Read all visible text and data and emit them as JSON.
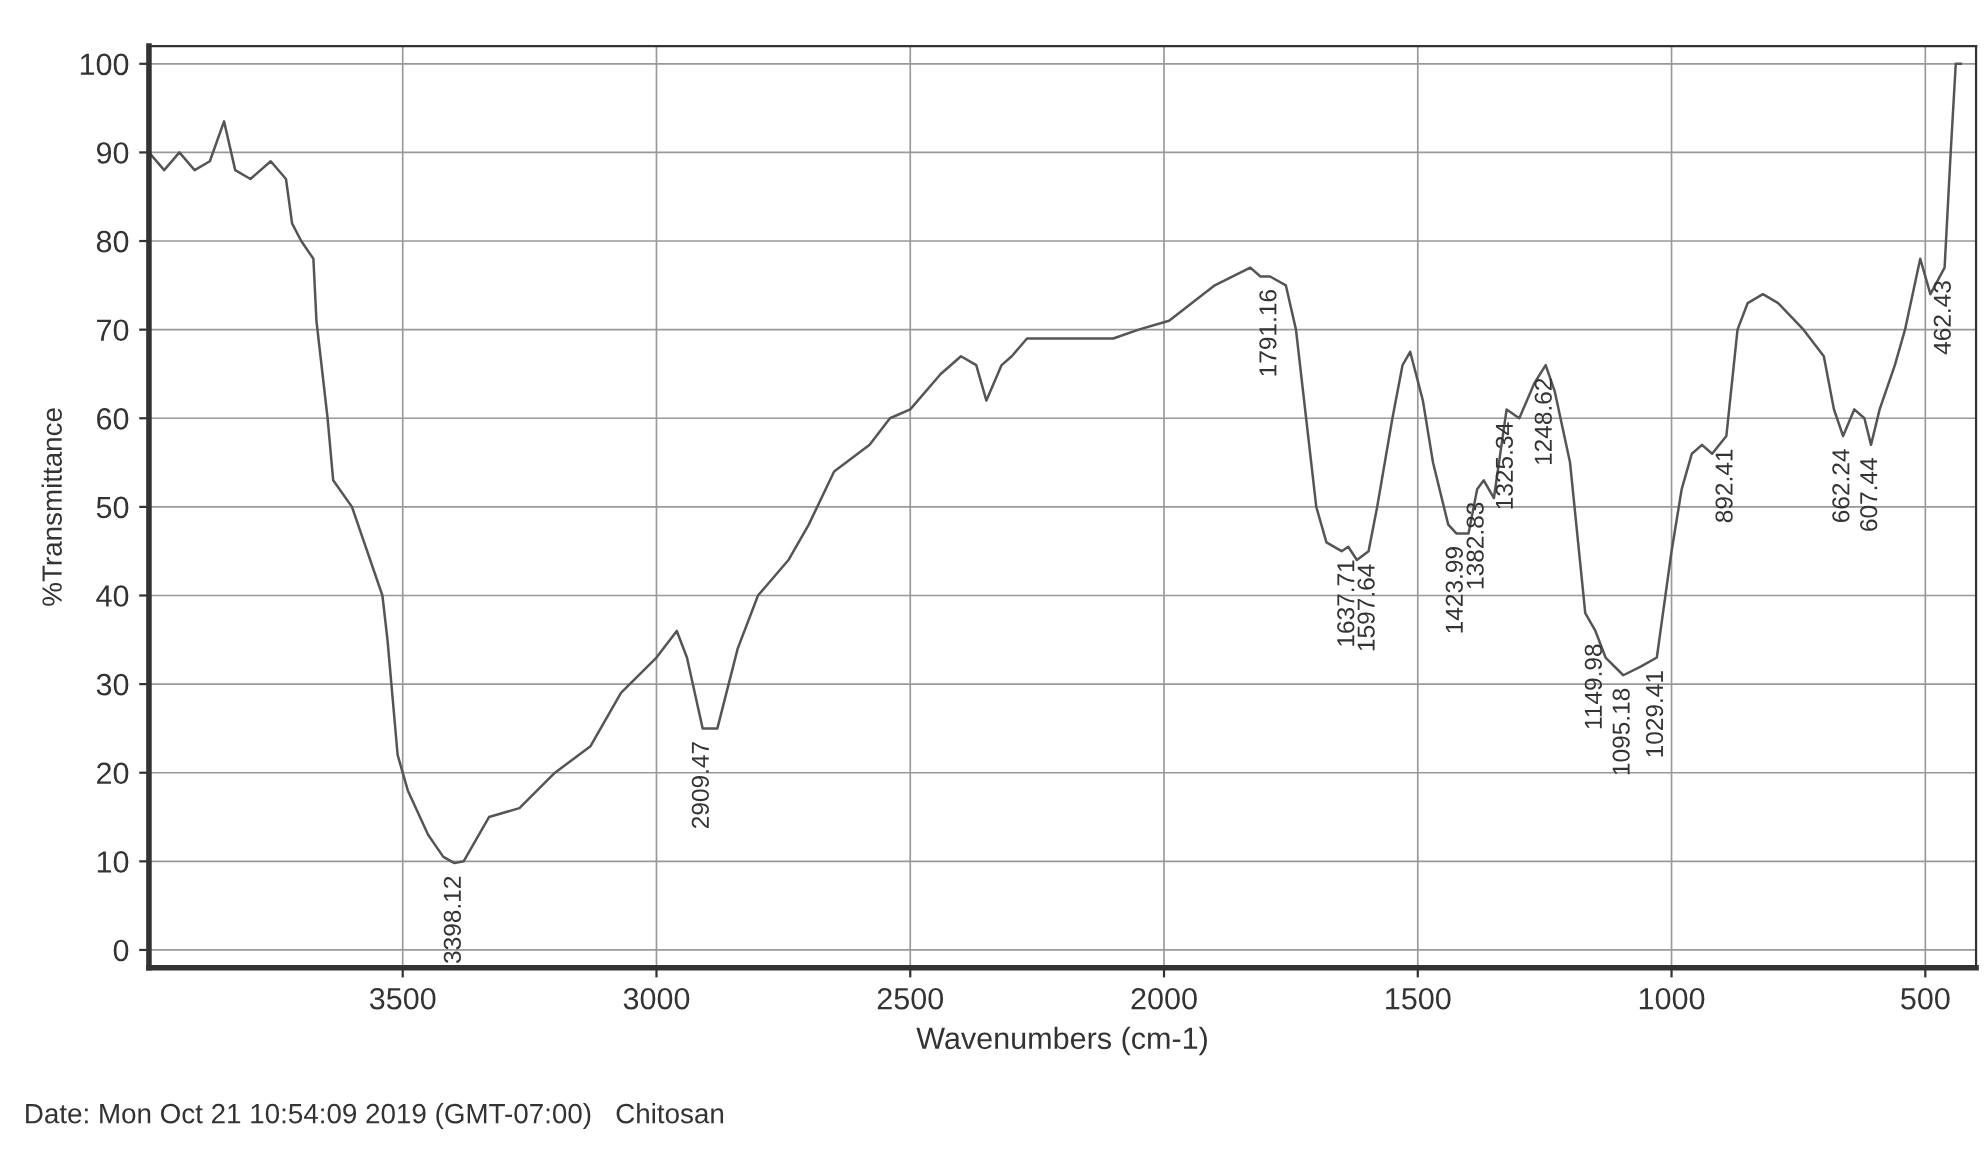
{
  "chart_data": {
    "type": "line",
    "xlabel": "Wavenumbers (cm-1)",
    "ylabel": "%Transmittance",
    "xlim": [
      4000,
      400
    ],
    "ylim": [
      -2,
      102
    ],
    "xticks": [
      3500,
      3000,
      2500,
      2000,
      1500,
      1000,
      500
    ],
    "yticks": [
      0,
      10,
      20,
      30,
      40,
      50,
      60,
      70,
      80,
      90,
      100
    ],
    "grid": true,
    "legend": false,
    "marker": "none",
    "line_style": "solid",
    "series": [
      {
        "color": "#555555",
        "x": [
          4000,
          3970,
          3940,
          3910,
          3880,
          3852,
          3830,
          3800,
          3780,
          3760,
          3730,
          3718,
          3700,
          3676,
          3670,
          3648,
          3637,
          3600,
          3540,
          3530,
          3510,
          3490,
          3450,
          3420,
          3398,
          3380,
          3330,
          3270,
          3200,
          3130,
          3070,
          3000,
          2960,
          2940,
          2909,
          2880,
          2840,
          2800,
          2740,
          2700,
          2650,
          2580,
          2540,
          2500,
          2440,
          2400,
          2370,
          2350,
          2320,
          2300,
          2270,
          2200,
          2100,
          2050,
          1990,
          1900,
          1830,
          1810,
          1791,
          1760,
          1740,
          1700,
          1680,
          1650,
          1637,
          1620,
          1597,
          1580,
          1550,
          1530,
          1515,
          1490,
          1470,
          1440,
          1424,
          1400,
          1383,
          1370,
          1350,
          1325,
          1300,
          1270,
          1248,
          1230,
          1200,
          1170,
          1150,
          1130,
          1095,
          1060,
          1029,
          1000,
          980,
          960,
          940,
          920,
          892,
          870,
          850,
          820,
          790,
          740,
          700,
          680,
          662,
          640,
          620,
          607,
          590,
          560,
          540,
          510,
          490,
          462,
          450,
          440,
          430
        ],
        "values": [
          90,
          88,
          90,
          88,
          89,
          93.5,
          88,
          87,
          88,
          89,
          87,
          82,
          80,
          78,
          71,
          60,
          53,
          50,
          40,
          35,
          22,
          18,
          13,
          10.5,
          9.8,
          10,
          15,
          16,
          20,
          23,
          29,
          33,
          36,
          33,
          25,
          25,
          34,
          40,
          44,
          48,
          54,
          57,
          60,
          61,
          65,
          67,
          66,
          62,
          66,
          67,
          69,
          69,
          69,
          70,
          71,
          75,
          77,
          76,
          76,
          75,
          70,
          50,
          46,
          45,
          45.5,
          44,
          45,
          50,
          60,
          66,
          67.5,
          62,
          55,
          48,
          47,
          47,
          52,
          53,
          51,
          61,
          60,
          64,
          66,
          63,
          55,
          38,
          36,
          33,
          31,
          32,
          33,
          45,
          52,
          56,
          57,
          56,
          58,
          70,
          73,
          74,
          73,
          70,
          67,
          61,
          58,
          61,
          60,
          57,
          61,
          66,
          70,
          78,
          74,
          77,
          90,
          100,
          100
        ]
      }
    ],
    "annotations": [
      {
        "text": "3398.12",
        "x": 3398.12,
        "y": 9.8
      },
      {
        "text": "2909.47",
        "x": 2909.47,
        "y": 25
      },
      {
        "text": "1791.16",
        "x": 1791.16,
        "y": 76
      },
      {
        "text": "1637.71",
        "x": 1637.71,
        "y": 45.5
      },
      {
        "text": "1597.64",
        "x": 1597.64,
        "y": 45
      },
      {
        "text": "1423.99",
        "x": 1423.99,
        "y": 47
      },
      {
        "text": "1382.83",
        "x": 1382.83,
        "y": 52
      },
      {
        "text": "1325.34",
        "x": 1325.34,
        "y": 61
      },
      {
        "text": "1248.62",
        "x": 1248.62,
        "y": 66
      },
      {
        "text": "1149.98",
        "x": 1149.98,
        "y": 36
      },
      {
        "text": "1095.18",
        "x": 1095.18,
        "y": 31
      },
      {
        "text": "1029.41",
        "x": 1029.41,
        "y": 33
      },
      {
        "text": "892.41",
        "x": 892.41,
        "y": 58
      },
      {
        "text": "662.24",
        "x": 662.24,
        "y": 58
      },
      {
        "text": "607.44",
        "x": 607.44,
        "y": 57
      },
      {
        "text": "462.43",
        "x": 462.43,
        "y": 77
      },
      "Date: Mon Oct 21 10:54:09 2019 (GMT-07:00)   Chitosan"
    ]
  }
}
